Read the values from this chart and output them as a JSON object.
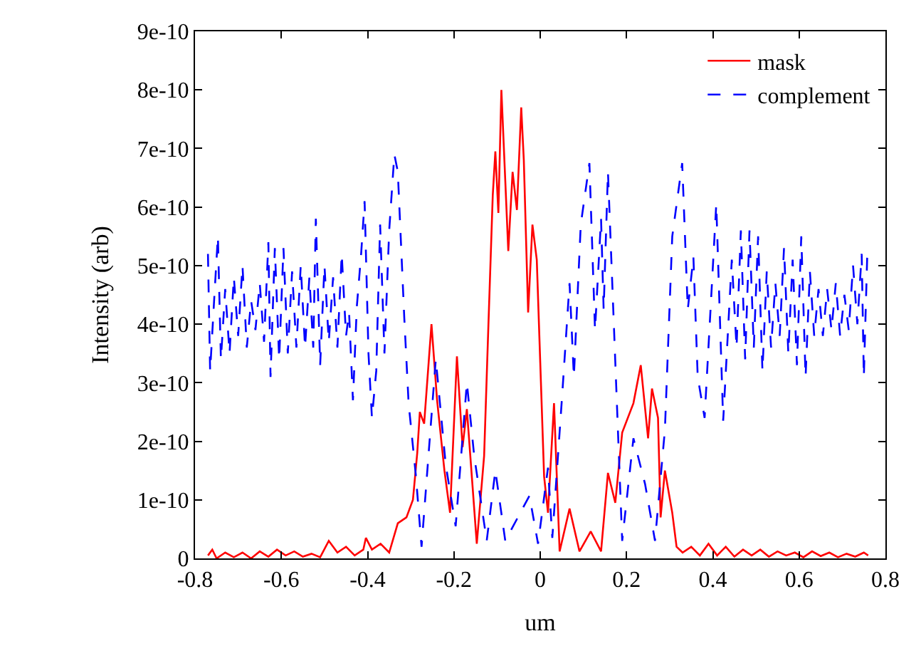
{
  "chart_data": {
    "type": "line",
    "xlabel": "um",
    "ylabel": "Intensity (arb)",
    "xlim": [
      -0.8,
      0.8
    ],
    "xticks": [
      -0.8,
      -0.6,
      -0.4,
      -0.2,
      0,
      0.2,
      0.4,
      0.6,
      0.8
    ],
    "ylim": [
      0,
      9e-10
    ],
    "yticks": [
      0,
      {
        "value": 1e-10,
        "label": "1e-10"
      },
      {
        "value": 2e-10,
        "label": "2e-10"
      },
      {
        "value": 3e-10,
        "label": "3e-10"
      },
      {
        "value": 4e-10,
        "label": "4e-10"
      },
      {
        "value": 5e-10,
        "label": "5e-10"
      },
      {
        "value": 6e-10,
        "label": "6e-10"
      },
      {
        "value": 7e-10,
        "label": "7e-10"
      },
      {
        "value": 8e-10,
        "label": "8e-10"
      },
      {
        "value": 9e-10,
        "label": "9e-10"
      }
    ],
    "legend": "top right",
    "grid": false,
    "series": [
      {
        "name": "mask",
        "color": "#ff0000",
        "line_style": "solid",
        "x": [
          -0.77,
          -0.76,
          -0.75,
          -0.73,
          -0.71,
          -0.69,
          -0.67,
          -0.65,
          -0.63,
          -0.61,
          -0.59,
          -0.57,
          -0.55,
          -0.53,
          -0.51,
          -0.49,
          -0.47,
          -0.45,
          -0.43,
          -0.41,
          -0.404,
          -0.39,
          -0.37,
          -0.35,
          -0.33,
          -0.31,
          -0.295,
          -0.285,
          -0.279,
          -0.269,
          -0.252,
          -0.239,
          -0.222,
          -0.209,
          -0.193,
          -0.18,
          -0.17,
          -0.147,
          -0.13,
          -0.12,
          -0.11,
          -0.104,
          -0.097,
          -0.09,
          -0.074,
          -0.064,
          -0.054,
          -0.044,
          -0.038,
          -0.028,
          -0.018,
          -0.008,
          0.009,
          0.018,
          0.032,
          0.045,
          0.068,
          0.091,
          0.117,
          0.141,
          0.157,
          0.174,
          0.19,
          0.216,
          0.233,
          0.25,
          0.259,
          0.273,
          0.279,
          0.289,
          0.306,
          0.316,
          0.33,
          0.35,
          0.37,
          0.39,
          0.41,
          0.43,
          0.45,
          0.47,
          0.49,
          0.51,
          0.53,
          0.55,
          0.57,
          0.59,
          0.61,
          0.63,
          0.65,
          0.67,
          0.69,
          0.71,
          0.73,
          0.75,
          0.76
        ],
        "values": [
          5e-12,
          1.5e-11,
          0,
          1e-11,
          2e-12,
          1e-11,
          0,
          1.2e-11,
          3e-12,
          1.5e-11,
          5e-12,
          1.2e-11,
          3e-12,
          8e-12,
          2e-12,
          3e-11,
          1e-11,
          2e-11,
          5e-12,
          1.5e-11,
          3.5e-11,
          1.5e-11,
          2.5e-11,
          1e-11,
          6e-11,
          7e-11,
          1e-10,
          1.8e-10,
          2.5e-10,
          2.3e-10,
          4e-10,
          2.7e-10,
          1.5e-10,
          7.8e-11,
          3.45e-10,
          1.9e-10,
          2.55e-10,
          2.5e-11,
          1.75e-10,
          4e-10,
          6.2e-10,
          6.95e-10,
          5.9e-10,
          8e-10,
          5.25e-10,
          6.6e-10,
          5.95e-10,
          7.7e-10,
          6.8e-10,
          4.2e-10,
          5.7e-10,
          5.1e-10,
          1.4e-10,
          7.8e-11,
          2.65e-10,
          1.2e-11,
          8.5e-11,
          1.2e-11,
          4.6e-11,
          1.2e-11,
          1.46e-10,
          9.5e-11,
          2.15e-10,
          2.65e-10,
          3.3e-10,
          2.05e-10,
          2.9e-10,
          2.4e-10,
          7e-11,
          1.5e-10,
          7.8e-11,
          2e-11,
          1e-11,
          2e-11,
          5e-12,
          2.5e-11,
          5e-12,
          2e-11,
          3e-12,
          1.5e-11,
          5e-12,
          1.5e-11,
          3e-12,
          1.2e-11,
          5e-12,
          1e-11,
          2e-12,
          1.2e-11,
          4e-12,
          1e-11,
          2e-12,
          8e-12,
          3e-12,
          1e-11,
          5e-12
        ]
      },
      {
        "name": "complement",
        "color": "#0000ff",
        "line_style": "dashed",
        "x": [
          -0.77,
          -0.765,
          -0.755,
          -0.747,
          -0.74,
          -0.73,
          -0.72,
          -0.71,
          -0.7,
          -0.69,
          -0.68,
          -0.67,
          -0.66,
          -0.65,
          -0.64,
          -0.63,
          -0.625,
          -0.615,
          -0.605,
          -0.595,
          -0.585,
          -0.575,
          -0.565,
          -0.555,
          -0.545,
          -0.535,
          -0.526,
          -0.52,
          -0.51,
          -0.5,
          -0.49,
          -0.48,
          -0.47,
          -0.46,
          -0.45,
          -0.443,
          -0.434,
          -0.425,
          -0.415,
          -0.407,
          -0.398,
          -0.39,
          -0.38,
          -0.371,
          -0.361,
          -0.35,
          -0.338,
          -0.33,
          -0.315,
          -0.305,
          -0.288,
          -0.275,
          -0.242,
          -0.219,
          -0.196,
          -0.17,
          -0.153,
          -0.124,
          -0.104,
          -0.081,
          -0.025,
          -0.005,
          0.018,
          0.028,
          0.051,
          0.068,
          0.078,
          0.094,
          0.114,
          0.127,
          0.141,
          0.147,
          0.157,
          0.19,
          0.216,
          0.243,
          0.259,
          0.266,
          0.289,
          0.306,
          0.329,
          0.342,
          0.355,
          0.365,
          0.381,
          0.408,
          0.424,
          0.444,
          0.455,
          0.465,
          0.475,
          0.485,
          0.495,
          0.505,
          0.515,
          0.525,
          0.535,
          0.545,
          0.555,
          0.565,
          0.575,
          0.585,
          0.595,
          0.605,
          0.615,
          0.625,
          0.635,
          0.645,
          0.655,
          0.665,
          0.675,
          0.685,
          0.695,
          0.705,
          0.715,
          0.725,
          0.735,
          0.745,
          0.75,
          0.758
        ],
        "values": [
          5.2e-10,
          3.2e-10,
          4.5e-10,
          5.5e-10,
          3.4e-10,
          4.6e-10,
          3.5e-10,
          4.8e-10,
          3.8e-10,
          5e-10,
          3.6e-10,
          4.4e-10,
          3.9e-10,
          4.7e-10,
          3.7e-10,
          5.4e-10,
          3.1e-10,
          5.3e-10,
          3.4e-10,
          5.3e-10,
          3.5e-10,
          4.9e-10,
          3.6e-10,
          5e-10,
          3.6e-10,
          4.8e-10,
          3.6e-10,
          5.8e-10,
          3.3e-10,
          5e-10,
          3.7e-10,
          4.8e-10,
          3.6e-10,
          5.2e-10,
          3.8e-10,
          4.2e-10,
          2.7e-10,
          4.3e-10,
          5.2e-10,
          6.1e-10,
          3.5e-10,
          2.4e-10,
          3.2e-10,
          5.7e-10,
          3.5e-10,
          5.6e-10,
          6.9e-10,
          6.6e-10,
          4.1e-10,
          2.65e-10,
          1.4e-10,
          2e-11,
          3.4e-10,
          1.6e-10,
          5.5e-11,
          3e-10,
          1.75e-10,
          3e-11,
          1.5e-10,
          3e-11,
          1.07e-10,
          2.5e-11,
          1.55e-10,
          3.5e-11,
          2.8e-10,
          4.7e-10,
          3.1e-10,
          5.7e-10,
          6.75e-10,
          3.9e-10,
          5.8e-10,
          4.25e-10,
          6.6e-10,
          3e-11,
          2.05e-10,
          1.27e-10,
          6e-11,
          3e-11,
          2.2e-10,
          5.5e-10,
          6.75e-10,
          4.25e-10,
          5.15e-10,
          3.1e-10,
          2.4e-10,
          6.05e-10,
          2.35e-10,
          5.1e-10,
          3.6e-10,
          5.6e-10,
          3.4e-10,
          5.6e-10,
          3.6e-10,
          5.5e-10,
          3.2e-10,
          4.9e-10,
          3.6e-10,
          4.7e-10,
          3.8e-10,
          5.3e-10,
          3.5e-10,
          5.1e-10,
          3.3e-10,
          5.5e-10,
          3.1e-10,
          4.9e-10,
          3.8e-10,
          4.6e-10,
          3.8e-10,
          4.6e-10,
          3.9e-10,
          4.7e-10,
          3.8e-10,
          4.5e-10,
          3.9e-10,
          5e-10,
          4e-10,
          5.2e-10,
          3.1e-10,
          5.2e-10
        ]
      }
    ]
  }
}
